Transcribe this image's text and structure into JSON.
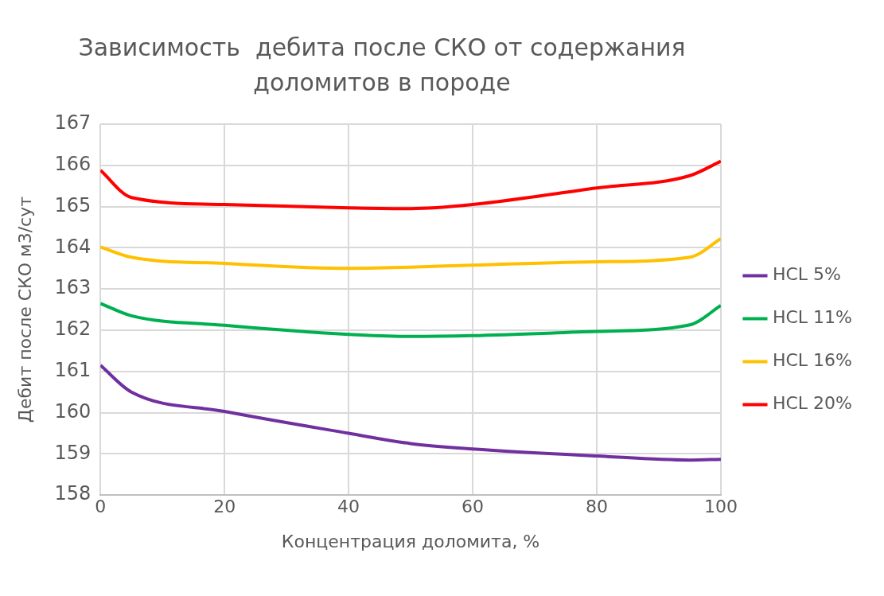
{
  "chart_data": {
    "type": "line",
    "title": "Зависимость  дебита после СКО от содержания доломитов в породе",
    "xlabel": "Концентрация доломита, %",
    "ylabel": "Дебит после СКО м3/сут",
    "x": [
      0,
      5,
      20,
      40,
      50,
      60,
      80,
      95,
      100
    ],
    "series": [
      {
        "name": "HCL 5%",
        "color": "#7030a0",
        "values": [
          161.15,
          160.5,
          160.03,
          159.5,
          159.25,
          159.12,
          158.95,
          158.85,
          158.87
        ]
      },
      {
        "name": "HCL 11%",
        "color": "#00b050",
        "values": [
          162.65,
          162.35,
          162.12,
          161.9,
          161.85,
          161.87,
          161.97,
          162.13,
          162.6
        ]
      },
      {
        "name": "HCL 16%",
        "color": "#ffc000",
        "values": [
          164.02,
          163.77,
          163.62,
          163.5,
          163.53,
          163.58,
          163.66,
          163.77,
          164.22
        ]
      },
      {
        "name": "HCL 20%",
        "color": "#ff0000",
        "values": [
          165.88,
          165.22,
          165.05,
          164.97,
          164.95,
          165.05,
          165.45,
          165.75,
          166.1
        ]
      }
    ],
    "xlim": [
      0,
      100
    ],
    "xticks": [
      0,
      20,
      40,
      60,
      80,
      100
    ],
    "ylim": [
      158,
      167
    ],
    "yticks": [
      158,
      159,
      160,
      161,
      162,
      163,
      164,
      165,
      166,
      167
    ],
    "grid": true,
    "legend": "right",
    "marker": "none",
    "line_style": "solid"
  }
}
